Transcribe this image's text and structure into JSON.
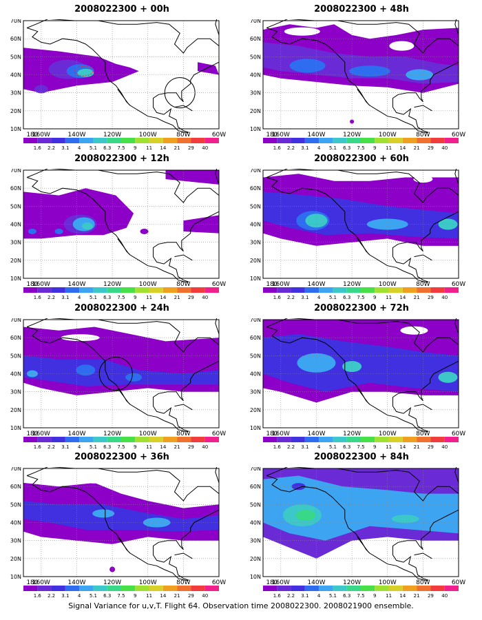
{
  "footer": "Signal Variance for u,v,T. Flight 64. Observation time 2008022300. 2008021900 ensemble.",
  "colorbar": {
    "levels": [
      "1.6",
      "2.2",
      "3.1",
      "4",
      "5.1",
      "6.3",
      "7.5",
      "9",
      "11",
      "14",
      "21",
      "29",
      "40"
    ],
    "colors": [
      "#8c00c8",
      "#6a2ad6",
      "#4030e0",
      "#2e6cf0",
      "#3ca4f0",
      "#3cc8c8",
      "#38d888",
      "#48e048",
      "#a0e030",
      "#d8d028",
      "#f0a020",
      "#f07030",
      "#f03c3c",
      "#f0208c"
    ]
  },
  "map": {
    "lon_labels": [
      "180",
      "160W",
      "140W",
      "120W",
      "100W",
      "80W",
      "60W"
    ],
    "lat_labels": [
      "70N",
      "60N",
      "50N",
      "40N",
      "30N",
      "20N",
      "10N"
    ],
    "lon_range": [
      -170,
      -60
    ],
    "lat_range": [
      10,
      70
    ]
  },
  "chart_data": [
    {
      "type": "heatmap",
      "title": "2008022300 + 00h"
    },
    {
      "type": "heatmap",
      "title": "2008022300 + 48h"
    },
    {
      "type": "heatmap",
      "title": "2008022300 + 12h"
    },
    {
      "type": "heatmap",
      "title": "2008022300 + 60h"
    },
    {
      "type": "heatmap",
      "title": "2008022300 + 24h"
    },
    {
      "type": "heatmap",
      "title": "2008022300 + 72h"
    },
    {
      "type": "heatmap",
      "title": "2008022300 + 36h"
    },
    {
      "type": "heatmap",
      "title": "2008022300 + 84h"
    }
  ]
}
